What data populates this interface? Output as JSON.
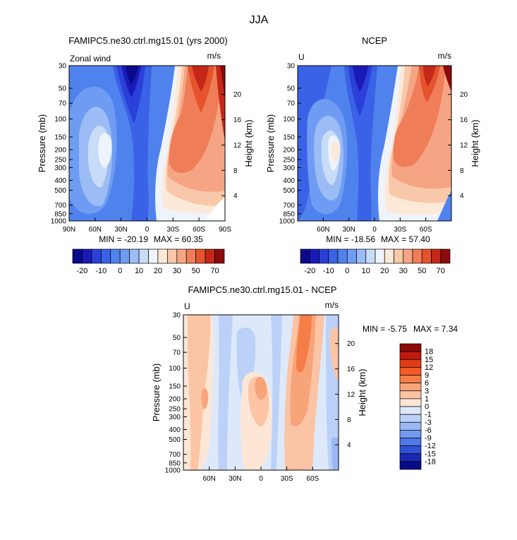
{
  "figure": {
    "season": "JJA"
  },
  "chart_data": [
    {
      "type": "heatmap",
      "id": "model",
      "title": "FAMIPC5.ne30.ctrl.mg15.01 (yrs 2000)",
      "left_label": "Zonal wind",
      "units": "m/s",
      "ylabel": "Pressure (mb)",
      "y2label": "Height (km)",
      "pressure_ticks": [
        "30",
        "50",
        "70",
        "100",
        "150",
        "200",
        "250",
        "300",
        "400",
        "500",
        "700",
        "850",
        "1000"
      ],
      "height_ticks": [
        "20",
        "16",
        "12",
        "8",
        "4"
      ],
      "lat_ticks": [
        "90N",
        "60N",
        "30N",
        "0",
        "30S",
        "60S",
        "90S"
      ],
      "min_label": "MIN = -20.19",
      "max_label": "MAX = 60.35",
      "min": -20.19,
      "max": 60.35,
      "features": [
        {
          "kind": "easterly jet core",
          "lat": 25,
          "pressure_mb": 50,
          "value": -20
        },
        {
          "kind": "westerly jet core",
          "lat": -30,
          "pressure_mb": 200,
          "value": 40
        },
        {
          "kind": "polar night jet",
          "lat": -55,
          "pressure_mb": 30,
          "value": 60
        }
      ],
      "colorbar": {
        "labels": [
          "-20",
          "-10",
          "0",
          "10",
          "20",
          "30",
          "50",
          "70"
        ],
        "levels": [
          -25,
          -20,
          -15,
          -10,
          -5,
          0,
          5,
          10,
          15,
          20,
          25,
          30,
          40,
          50,
          60,
          70
        ],
        "colors": [
          "#0a0a8a",
          "#1a1ab8",
          "#2a40d8",
          "#3a62e6",
          "#5082ee",
          "#6e9cf2",
          "#9cbcf5",
          "#c8dcf8",
          "#eef3fc",
          "#fde9d8",
          "#f9c8aa",
          "#f5a584",
          "#ef7e58",
          "#e4532e",
          "#c52818",
          "#8c0a0a"
        ]
      }
    },
    {
      "type": "heatmap",
      "id": "obs",
      "title": "NCEP",
      "left_label": "U",
      "units": "m/s",
      "ylabel": "Pressure (mb)",
      "y2label": "Height (km)",
      "pressure_ticks": [
        "30",
        "50",
        "70",
        "100",
        "150",
        "200",
        "250",
        "300",
        "400",
        "500",
        "700",
        "850",
        "1000"
      ],
      "height_ticks": [
        "20",
        "16",
        "12",
        "8",
        "4"
      ],
      "lat_ticks": [
        "60N",
        "30N",
        "0",
        "30S",
        "60S"
      ],
      "min_label": "MIN = -18.56",
      "max_label": "MAX = 57.40",
      "min": -18.56,
      "max": 57.4,
      "features": [
        {
          "kind": "easterly jet core",
          "lat": 20,
          "pressure_mb": 50,
          "value": -18
        },
        {
          "kind": "westerly jet core",
          "lat": -35,
          "pressure_mb": 200,
          "value": 35
        },
        {
          "kind": "polar night jet",
          "lat": -58,
          "pressure_mb": 30,
          "value": 57
        }
      ],
      "colorbar": {
        "labels": [
          "-20",
          "-10",
          "0",
          "10",
          "20",
          "30",
          "50",
          "70"
        ],
        "levels": [
          -25,
          -20,
          -15,
          -10,
          -5,
          0,
          5,
          10,
          15,
          20,
          25,
          30,
          40,
          50,
          60,
          70
        ],
        "colors": [
          "#0a0a8a",
          "#1a1ab8",
          "#2a40d8",
          "#3a62e6",
          "#5082ee",
          "#6e9cf2",
          "#9cbcf5",
          "#c8dcf8",
          "#eef3fc",
          "#fde9d8",
          "#f9c8aa",
          "#f5a584",
          "#ef7e58",
          "#e4532e",
          "#c52818",
          "#8c0a0a"
        ]
      }
    },
    {
      "type": "heatmap",
      "id": "diff",
      "title": "FAMIPC5.ne30.ctrl.mg15.01 - NCEP",
      "left_label": "U",
      "units": "m/s",
      "ylabel": "Pressure (mb)",
      "y2label": "Height (km)",
      "pressure_ticks": [
        "30",
        "50",
        "70",
        "100",
        "150",
        "200",
        "250",
        "300",
        "400",
        "500",
        "700",
        "850",
        "1000"
      ],
      "height_ticks": [
        "20",
        "16",
        "12",
        "8",
        "4"
      ],
      "lat_ticks": [
        "60N",
        "30N",
        "0",
        "30S",
        "60S"
      ],
      "min_label": "MIN =   -5.75",
      "max_label": "MAX =    7.34",
      "min": -5.75,
      "max": 7.34,
      "colorbar": {
        "labels": [
          "18",
          "15",
          "12",
          "9",
          "6",
          "3",
          "1",
          "0",
          "-1",
          "-3",
          "-6",
          "-9",
          "-12",
          "-15",
          "-18"
        ],
        "colors": [
          "#8c0a0a",
          "#c01a10",
          "#e03a18",
          "#f25a28",
          "#f57e48",
          "#f8a47a",
          "#fbc4a4",
          "#fde6d6",
          "#dde9fb",
          "#bcd1f7",
          "#9ab8f3",
          "#739aee",
          "#4f78e8",
          "#2f52d6",
          "#1a28b0",
          "#0a0a88"
        ]
      }
    }
  ]
}
